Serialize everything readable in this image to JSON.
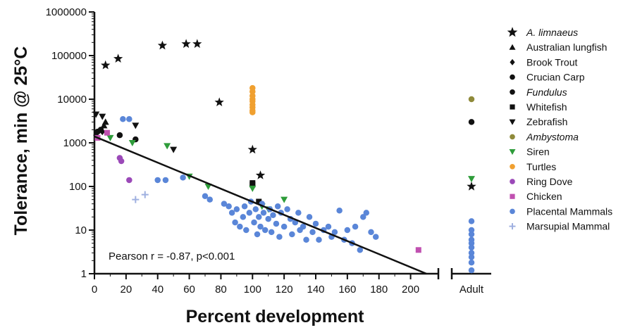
{
  "chart_data": {
    "type": "scatter",
    "xlabel": "Percent development",
    "ylabel": "Tolerance, min @ 25°C",
    "y_scale": "log",
    "ylim": [
      1,
      1000000
    ],
    "xlim": [
      0,
      210
    ],
    "x_ticks": [
      "0",
      "20",
      "40",
      "60",
      "80",
      "100",
      "120",
      "140",
      "160",
      "180",
      "200"
    ],
    "y_ticks": [
      "1",
      "10",
      "100",
      "1000",
      "10000",
      "100000",
      "1000000"
    ],
    "adult_label": "Adult",
    "annotation": "Pearson r = -0.87, p<0.001",
    "regression_line": {
      "x": [
        0,
        210
      ],
      "y": [
        1400,
        1
      ]
    },
    "series": [
      {
        "name": "A. limnaeus",
        "italic": true,
        "marker": "star",
        "color": "#111111",
        "points": [
          [
            7,
            60000
          ],
          [
            15,
            85000
          ],
          [
            43,
            170000
          ],
          [
            58,
            185000
          ],
          [
            65,
            185000
          ],
          [
            79,
            8500
          ],
          [
            100,
            700
          ],
          [
            105,
            180
          ]
        ],
        "adult": [
          100
        ]
      },
      {
        "name": "Australian lungfish",
        "italic": false,
        "marker": "triangle",
        "color": "#111111",
        "points": [
          [
            6,
            2500
          ],
          [
            7,
            3000
          ]
        ],
        "adult": []
      },
      {
        "name": "Brook Trout",
        "italic": false,
        "marker": "diamond",
        "color": "#111111",
        "points": [
          [
            1,
            1500
          ],
          [
            5,
            1800
          ]
        ],
        "adult": []
      },
      {
        "name": "Crucian Carp",
        "italic": false,
        "marker": "circle",
        "color": "#111111",
        "points": [
          [
            16,
            1500
          ],
          [
            26,
            1200
          ]
        ],
        "adult": [
          3000
        ]
      },
      {
        "name": "Fundulus",
        "italic": true,
        "marker": "circle",
        "color": "#111111",
        "points": [
          [
            2,
            1800
          ],
          [
            4,
            2000
          ]
        ],
        "adult": []
      },
      {
        "name": "Whitefish",
        "italic": false,
        "marker": "square",
        "color": "#111111",
        "points": [
          [
            100,
            110
          ],
          [
            100,
            120
          ],
          [
            104,
            45
          ]
        ],
        "adult": []
      },
      {
        "name": "Zebrafish",
        "italic": false,
        "marker": "triangle-down",
        "color": "#111111",
        "points": [
          [
            1,
            4500
          ],
          [
            5,
            4000
          ],
          [
            26,
            2500
          ],
          [
            50,
            700
          ]
        ],
        "adult": []
      },
      {
        "name": "Ambystoma",
        "italic": true,
        "marker": "circle",
        "color": "#8f8a3a",
        "points": [],
        "adult": [
          10000
        ]
      },
      {
        "name": "Siren",
        "italic": false,
        "marker": "triangle-down",
        "color": "#2e9c3a",
        "points": [
          [
            10,
            1300
          ],
          [
            24,
            1000
          ],
          [
            46,
            850
          ],
          [
            60,
            170
          ],
          [
            72,
            100
          ],
          [
            100,
            90
          ],
          [
            106,
            35
          ],
          [
            110,
            30
          ],
          [
            120,
            50
          ]
        ],
        "adult": [
          150
        ]
      },
      {
        "name": "Turtles",
        "italic": false,
        "marker": "circle",
        "color": "#f0a030",
        "points": [
          [
            100,
            18000
          ],
          [
            100,
            15000
          ],
          [
            100,
            12000
          ],
          [
            100,
            10000
          ],
          [
            100,
            9000
          ],
          [
            100,
            7500
          ],
          [
            100,
            6500
          ],
          [
            100,
            5500
          ],
          [
            100,
            5000
          ]
        ],
        "adult": []
      },
      {
        "name": "Ring Dove",
        "italic": false,
        "marker": "circle",
        "color": "#9b49b8",
        "points": [
          [
            16,
            450
          ],
          [
            17,
            380
          ],
          [
            22,
            140
          ]
        ],
        "adult": []
      },
      {
        "name": "Chicken",
        "italic": false,
        "marker": "square",
        "color": "#c050b0",
        "points": [
          [
            2,
            1300
          ],
          [
            8,
            1700
          ],
          [
            205,
            3.5
          ]
        ],
        "adult": []
      },
      {
        "name": "Placental Mammals",
        "italic": false,
        "marker": "circle",
        "color": "#5a86d8",
        "points": [
          [
            18,
            3500
          ],
          [
            22,
            3500
          ],
          [
            40,
            140
          ],
          [
            45,
            140
          ],
          [
            56,
            160
          ],
          [
            70,
            60
          ],
          [
            73,
            50
          ],
          [
            82,
            40
          ],
          [
            85,
            35
          ],
          [
            87,
            25
          ],
          [
            89,
            15
          ],
          [
            90,
            30
          ],
          [
            92,
            12
          ],
          [
            94,
            20
          ],
          [
            95,
            35
          ],
          [
            96,
            10
          ],
          [
            98,
            25
          ],
          [
            99,
            45
          ],
          [
            101,
            15
          ],
          [
            102,
            30
          ],
          [
            103,
            8
          ],
          [
            104,
            20
          ],
          [
            105,
            12
          ],
          [
            106,
            40
          ],
          [
            107,
            25
          ],
          [
            108,
            10
          ],
          [
            110,
            18
          ],
          [
            111,
            30
          ],
          [
            112,
            9
          ],
          [
            113,
            22
          ],
          [
            115,
            14
          ],
          [
            116,
            35
          ],
          [
            117,
            7
          ],
          [
            118,
            25
          ],
          [
            120,
            12
          ],
          [
            122,
            30
          ],
          [
            124,
            18
          ],
          [
            125,
            8
          ],
          [
            127,
            15
          ],
          [
            129,
            25
          ],
          [
            130,
            10
          ],
          [
            132,
            12
          ],
          [
            134,
            6
          ],
          [
            136,
            20
          ],
          [
            138,
            9
          ],
          [
            140,
            14
          ],
          [
            142,
            6
          ],
          [
            145,
            10
          ],
          [
            148,
            12
          ],
          [
            150,
            7
          ],
          [
            152,
            9
          ],
          [
            155,
            28
          ],
          [
            158,
            6
          ],
          [
            160,
            10
          ],
          [
            163,
            5
          ],
          [
            165,
            12
          ],
          [
            168,
            3.5
          ],
          [
            170,
            20
          ],
          [
            172,
            25
          ],
          [
            175,
            9
          ],
          [
            178,
            7
          ]
        ],
        "adult": [
          16,
          10,
          8,
          6,
          5,
          4,
          3,
          2.4,
          1.8,
          1.2
        ]
      },
      {
        "name": "Marsupial Mammal",
        "italic": false,
        "marker": "plus",
        "color": "#9fb0e0",
        "points": [
          [
            26,
            50
          ],
          [
            32,
            65
          ]
        ],
        "adult": []
      }
    ]
  }
}
